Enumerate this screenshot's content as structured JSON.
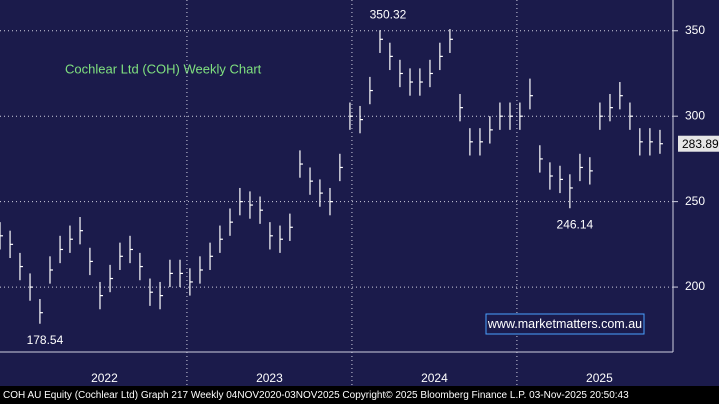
{
  "chart_data": {
    "type": "ohlc",
    "title": "Cochlear Ltd (COH) Weekly Chart",
    "watermark": "www.marketmatters.com.au",
    "footer": "COH AU Equity (Cochlear Ltd) Graph 217 Weekly 04NOV2020-03NOV2025  Copyright© 2025 Bloomberg Finance L.P.   03-Nov-2025 20:50:43",
    "annotations": [
      "350.32",
      "246.14",
      "178.54"
    ],
    "last_price_label": "283.89",
    "x": [
      2021.867,
      2021.928,
      2021.988,
      2022.049,
      2022.109,
      2022.17,
      2022.231,
      2022.291,
      2022.352,
      2022.412,
      2022.473,
      2022.534,
      2022.594,
      2022.655,
      2022.715,
      2022.776,
      2022.837,
      2022.897,
      2022.958,
      2023.018,
      2023.079,
      2023.14,
      2023.2,
      2023.261,
      2023.321,
      2023.382,
      2023.443,
      2023.503,
      2023.564,
      2023.624,
      2023.685,
      2023.746,
      2023.806,
      2023.867,
      2023.927,
      2023.988,
      2024.049,
      2024.109,
      2024.17,
      2024.23,
      2024.291,
      2024.352,
      2024.412,
      2024.473,
      2024.533,
      2024.594,
      2024.655,
      2024.715,
      2024.776,
      2024.836,
      2024.897,
      2024.958,
      2025.018,
      2025.079,
      2025.139,
      2025.2,
      2025.261,
      2025.321,
      2025.382,
      2025.442,
      2025.503,
      2025.564,
      2025.624,
      2025.685,
      2025.745,
      2025.806,
      2025.867
    ],
    "high": [
      238,
      233,
      220,
      208,
      193,
      218,
      230,
      236,
      241,
      223,
      203,
      213,
      226,
      230,
      220,
      205,
      203,
      216,
      216,
      211,
      218,
      226,
      236,
      246,
      258,
      256,
      253,
      238,
      236,
      243,
      280,
      270,
      263,
      258,
      278,
      308,
      306,
      323,
      350.32,
      343,
      333,
      328,
      328,
      333,
      343,
      351,
      313,
      293,
      293,
      300,
      308,
      308,
      308,
      322,
      283,
      273,
      271,
      266,
      278,
      276,
      308,
      313,
      320,
      308,
      293,
      293,
      292
    ],
    "low": [
      222,
      217,
      204,
      192,
      178.54,
      202,
      214,
      220,
      225,
      207,
      187,
      197,
      210,
      214,
      204,
      189,
      187,
      200,
      200,
      195,
      202,
      210,
      220,
      230,
      242,
      240,
      237,
      222,
      220,
      227,
      264,
      254,
      247,
      242,
      262,
      292,
      290,
      307,
      337,
      327,
      317,
      312,
      312,
      317,
      327,
      337,
      297,
      277,
      277,
      284,
      292,
      292,
      292,
      304,
      267,
      257,
      255,
      246.14,
      262,
      260,
      292,
      297,
      304,
      292,
      277,
      277,
      278
    ],
    "close": [
      230,
      225,
      212,
      200,
      185,
      210,
      222,
      228,
      233,
      215,
      195,
      205,
      218,
      222,
      212,
      197,
      195,
      208,
      208,
      203,
      210,
      218,
      228,
      238,
      250,
      248,
      245,
      230,
      228,
      235,
      272,
      262,
      255,
      250,
      270,
      300,
      298,
      315,
      345,
      335,
      325,
      320,
      320,
      325,
      335,
      345,
      305,
      285,
      285,
      292,
      300,
      300,
      300,
      312,
      275,
      265,
      263,
      258,
      270,
      268,
      300,
      305,
      312,
      300,
      285,
      285,
      283.89
    ],
    "color": "#ffffff",
    "xlim": [
      2021.867,
      2025.946
    ],
    "xticks": [
      {
        "value": 2022.5,
        "label": "2022"
      },
      {
        "value": 2023.5,
        "label": "2023"
      },
      {
        "value": 2024.5,
        "label": "2024"
      },
      {
        "value": 2025.5,
        "label": "2025"
      }
    ],
    "xbounds": [
      2023,
      2024,
      2025
    ],
    "ylim": [
      162,
      368
    ],
    "yticks": [
      200,
      250,
      300,
      350
    ],
    "grid": true
  }
}
